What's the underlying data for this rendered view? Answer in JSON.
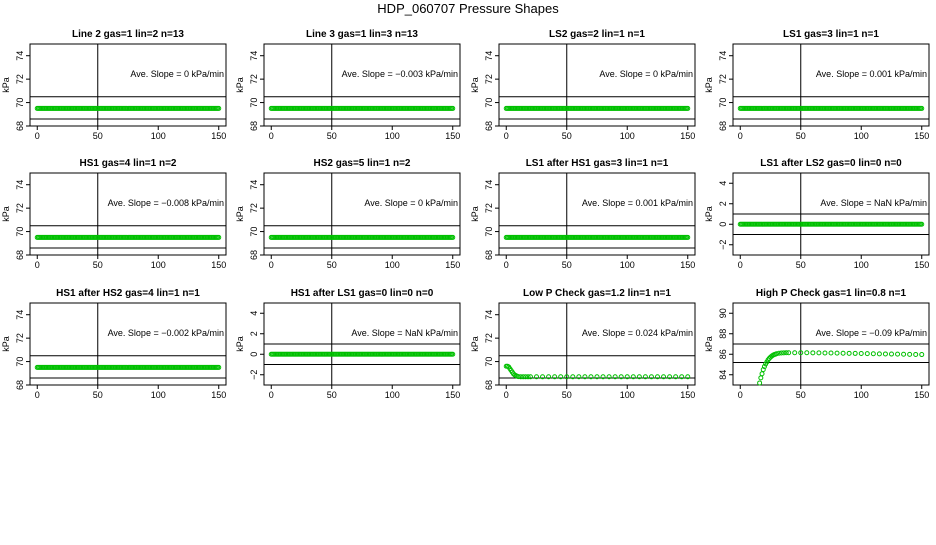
{
  "page": {
    "title": "HDP_060707  Pressure Shapes"
  },
  "chart_data": [
    {
      "type": "scatter",
      "title": "Line 2 gas=1 lin=2 n=13",
      "ylabel": "kPa",
      "xlim": [
        0,
        150
      ],
      "ylim": [
        68,
        75
      ],
      "xticks": [
        0,
        50,
        100,
        150
      ],
      "yticks": [
        68,
        70,
        72,
        74
      ],
      "hlines": [
        70.5,
        68.6
      ],
      "vline": 50,
      "annotation": "Ave. Slope =  0  kPa/min",
      "series": [
        {
          "color": "#00c000",
          "points": {
            "x_start": 0,
            "x_end": 150,
            "count": 151,
            "y": 69.5
          }
        }
      ]
    },
    {
      "type": "scatter",
      "title": "Line 3 gas=1 lin=3 n=13",
      "ylabel": "kPa",
      "xlim": [
        0,
        150
      ],
      "ylim": [
        68,
        75
      ],
      "xticks": [
        0,
        50,
        100,
        150
      ],
      "yticks": [
        68,
        70,
        72,
        74
      ],
      "hlines": [
        70.5,
        68.6
      ],
      "vline": 50,
      "annotation": "Ave. Slope =  −0.003  kPa/min",
      "series": [
        {
          "color": "#00c000",
          "points": {
            "x_start": 0,
            "x_end": 150,
            "count": 151,
            "y": 69.5
          }
        }
      ]
    },
    {
      "type": "scatter",
      "title": "LS2 gas=2 lin=1 n=1",
      "ylabel": "kPa",
      "xlim": [
        0,
        150
      ],
      "ylim": [
        68,
        75
      ],
      "xticks": [
        0,
        50,
        100,
        150
      ],
      "yticks": [
        68,
        70,
        72,
        74
      ],
      "hlines": [
        70.5,
        68.6
      ],
      "vline": 50,
      "annotation": "Ave. Slope =  0  kPa/min",
      "series": [
        {
          "color": "#00c000",
          "points": {
            "x_start": 0,
            "x_end": 150,
            "count": 151,
            "y": 69.5
          }
        }
      ]
    },
    {
      "type": "scatter",
      "title": "LS1 gas=3 lin=1 n=1",
      "ylabel": "kPa",
      "xlim": [
        0,
        150
      ],
      "ylim": [
        68,
        75
      ],
      "xticks": [
        0,
        50,
        100,
        150
      ],
      "yticks": [
        68,
        70,
        72,
        74
      ],
      "hlines": [
        70.5,
        68.6
      ],
      "vline": 50,
      "annotation": "Ave. Slope =  0.001  kPa/min",
      "series": [
        {
          "color": "#00c000",
          "points": {
            "x_start": 0,
            "x_end": 150,
            "count": 151,
            "y": 69.5
          }
        }
      ]
    },
    {
      "type": "scatter",
      "title": "HS1 gas=4 lin=1 n=2",
      "ylabel": "kPa",
      "xlim": [
        0,
        150
      ],
      "ylim": [
        68,
        75
      ],
      "xticks": [
        0,
        50,
        100,
        150
      ],
      "yticks": [
        68,
        70,
        72,
        74
      ],
      "hlines": [
        70.5,
        68.6
      ],
      "vline": 50,
      "annotation": "Ave. Slope =  −0.008  kPa/min",
      "series": [
        {
          "color": "#00c000",
          "points": {
            "x_start": 0,
            "x_end": 150,
            "count": 151,
            "y": 69.5
          }
        }
      ]
    },
    {
      "type": "scatter",
      "title": "HS2 gas=5 lin=1 n=2",
      "ylabel": "kPa",
      "xlim": [
        0,
        150
      ],
      "ylim": [
        68,
        75
      ],
      "xticks": [
        0,
        50,
        100,
        150
      ],
      "yticks": [
        68,
        70,
        72,
        74
      ],
      "hlines": [
        70.5,
        68.6
      ],
      "vline": 50,
      "annotation": "Ave. Slope =  0  kPa/min",
      "series": [
        {
          "color": "#00c000",
          "points": {
            "x_start": 0,
            "x_end": 150,
            "count": 151,
            "y": 69.5
          }
        }
      ]
    },
    {
      "type": "scatter",
      "title": "LS1 after HS1 gas=3 lin=1 n=1",
      "ylabel": "kPa",
      "xlim": [
        0,
        150
      ],
      "ylim": [
        68,
        75
      ],
      "xticks": [
        0,
        50,
        100,
        150
      ],
      "yticks": [
        68,
        70,
        72,
        74
      ],
      "hlines": [
        70.5,
        68.6
      ],
      "vline": 50,
      "annotation": "Ave. Slope =  0.001  kPa/min",
      "series": [
        {
          "color": "#00c000",
          "points": {
            "x_start": 0,
            "x_end": 150,
            "count": 151,
            "y": 69.5
          }
        }
      ]
    },
    {
      "type": "scatter",
      "title": "LS1 after LS2 gas=0 lin=0 n=0",
      "ylabel": "kPa",
      "xlim": [
        0,
        150
      ],
      "ylim": [
        -3,
        5
      ],
      "xticks": [
        0,
        50,
        100,
        150
      ],
      "yticks": [
        -2,
        0,
        2,
        4
      ],
      "hlines": [
        1,
        -1
      ],
      "vline": 50,
      "annotation": "Ave. Slope =  NaN  kPa/min",
      "series": [
        {
          "color": "#00c000",
          "points": {
            "x_start": 0,
            "x_end": 150,
            "count": 151,
            "y": 0
          }
        }
      ]
    },
    {
      "type": "scatter",
      "title": "HS1 after HS2 gas=4 lin=1 n=1",
      "ylabel": "kPa",
      "xlim": [
        0,
        150
      ],
      "ylim": [
        68,
        75
      ],
      "xticks": [
        0,
        50,
        100,
        150
      ],
      "yticks": [
        68,
        70,
        72,
        74
      ],
      "hlines": [
        70.5,
        68.6
      ],
      "vline": 50,
      "annotation": "Ave. Slope =  −0.002  kPa/min",
      "series": [
        {
          "color": "#00c000",
          "points": {
            "x_start": 0,
            "x_end": 150,
            "count": 151,
            "y": 69.5
          }
        }
      ]
    },
    {
      "type": "scatter",
      "title": "HS1 after LS1 gas=0 lin=0 n=0",
      "ylabel": "kPa",
      "xlim": [
        0,
        150
      ],
      "ylim": [
        -3,
        5
      ],
      "xticks": [
        0,
        50,
        100,
        150
      ],
      "yticks": [
        -2,
        0,
        2,
        4
      ],
      "hlines": [
        1,
        -1
      ],
      "vline": 50,
      "annotation": "Ave. Slope =  NaN  kPa/min",
      "series": [
        {
          "color": "#00c000",
          "points": {
            "x_start": 0,
            "x_end": 150,
            "count": 151,
            "y": 0
          }
        }
      ]
    },
    {
      "type": "scatter",
      "title": "Low P Check gas=1.2 lin=1 n=1",
      "ylabel": "kPa",
      "xlim": [
        0,
        150
      ],
      "ylim": [
        68,
        75
      ],
      "xticks": [
        0,
        50,
        100,
        150
      ],
      "yticks": [
        68,
        70,
        72,
        74
      ],
      "hlines": [
        70.5,
        68.6
      ],
      "vline": 50,
      "annotation": "Ave. Slope =  0.024  kPa/min",
      "series": [
        {
          "color": "#00c000",
          "points": [
            [
              0,
              69.6
            ],
            [
              1,
              69.6
            ],
            [
              2,
              69.55
            ],
            [
              3,
              69.4
            ],
            [
              4,
              69.25
            ],
            [
              5,
              69.1
            ],
            [
              6,
              68.95
            ],
            [
              7,
              68.85
            ],
            [
              8,
              68.8
            ],
            [
              9,
              68.75
            ],
            [
              10,
              68.72
            ],
            [
              12,
              68.7
            ],
            [
              14,
              68.7
            ],
            [
              16,
              68.7
            ],
            [
              18,
              68.7
            ],
            [
              20,
              68.7
            ],
            [
              25,
              68.7
            ],
            [
              30,
              68.7
            ],
            [
              35,
              68.7
            ],
            [
              40,
              68.7
            ],
            [
              45,
              68.7
            ],
            [
              50,
              68.7
            ],
            [
              55,
              68.7
            ],
            [
              60,
              68.7
            ],
            [
              65,
              68.7
            ],
            [
              70,
              68.7
            ],
            [
              75,
              68.7
            ],
            [
              80,
              68.7
            ],
            [
              85,
              68.7
            ],
            [
              90,
              68.7
            ],
            [
              95,
              68.7
            ],
            [
              100,
              68.7
            ],
            [
              105,
              68.7
            ],
            [
              110,
              68.7
            ],
            [
              115,
              68.7
            ],
            [
              120,
              68.7
            ],
            [
              125,
              68.7
            ],
            [
              130,
              68.7
            ],
            [
              135,
              68.7
            ],
            [
              140,
              68.7
            ],
            [
              145,
              68.7
            ],
            [
              150,
              68.7
            ]
          ]
        }
      ]
    },
    {
      "type": "scatter",
      "title": "High P Check gas=1 lin=0.8 n=1",
      "ylabel": "kPa",
      "xlim": [
        0,
        150
      ],
      "ylim": [
        83,
        91
      ],
      "xticks": [
        0,
        50,
        100,
        150
      ],
      "yticks": [
        84,
        86,
        88,
        90
      ],
      "hlines": [
        87,
        85.2
      ],
      "vline": 50,
      "annotation": "Ave. Slope =  −0.09  kPa/min",
      "series": [
        {
          "color": "#00c000",
          "points": [
            [
              16,
              83.2
            ],
            [
              17,
              83.7
            ],
            [
              18,
              84.1
            ],
            [
              19,
              84.5
            ],
            [
              20,
              84.8
            ],
            [
              21,
              85.05
            ],
            [
              22,
              85.25
            ],
            [
              23,
              85.45
            ],
            [
              24,
              85.6
            ],
            [
              25,
              85.72
            ],
            [
              26,
              85.82
            ],
            [
              27,
              85.9
            ],
            [
              28,
              85.96
            ],
            [
              29,
              86.0
            ],
            [
              30,
              86.05
            ],
            [
              32,
              86.1
            ],
            [
              34,
              86.12
            ],
            [
              36,
              86.14
            ],
            [
              38,
              86.15
            ],
            [
              40,
              86.15
            ],
            [
              45,
              86.15
            ],
            [
              50,
              86.15
            ],
            [
              55,
              86.15
            ],
            [
              60,
              86.14
            ],
            [
              65,
              86.13
            ],
            [
              70,
              86.12
            ],
            [
              75,
              86.12
            ],
            [
              80,
              86.11
            ],
            [
              85,
              86.1
            ],
            [
              90,
              86.09
            ],
            [
              95,
              86.08
            ],
            [
              100,
              86.07
            ],
            [
              105,
              86.06
            ],
            [
              110,
              86.05
            ],
            [
              115,
              86.04
            ],
            [
              120,
              86.03
            ],
            [
              125,
              86.02
            ],
            [
              130,
              86.01
            ],
            [
              135,
              86.0
            ],
            [
              140,
              85.99
            ],
            [
              145,
              85.98
            ],
            [
              150,
              85.97
            ]
          ]
        }
      ]
    }
  ]
}
